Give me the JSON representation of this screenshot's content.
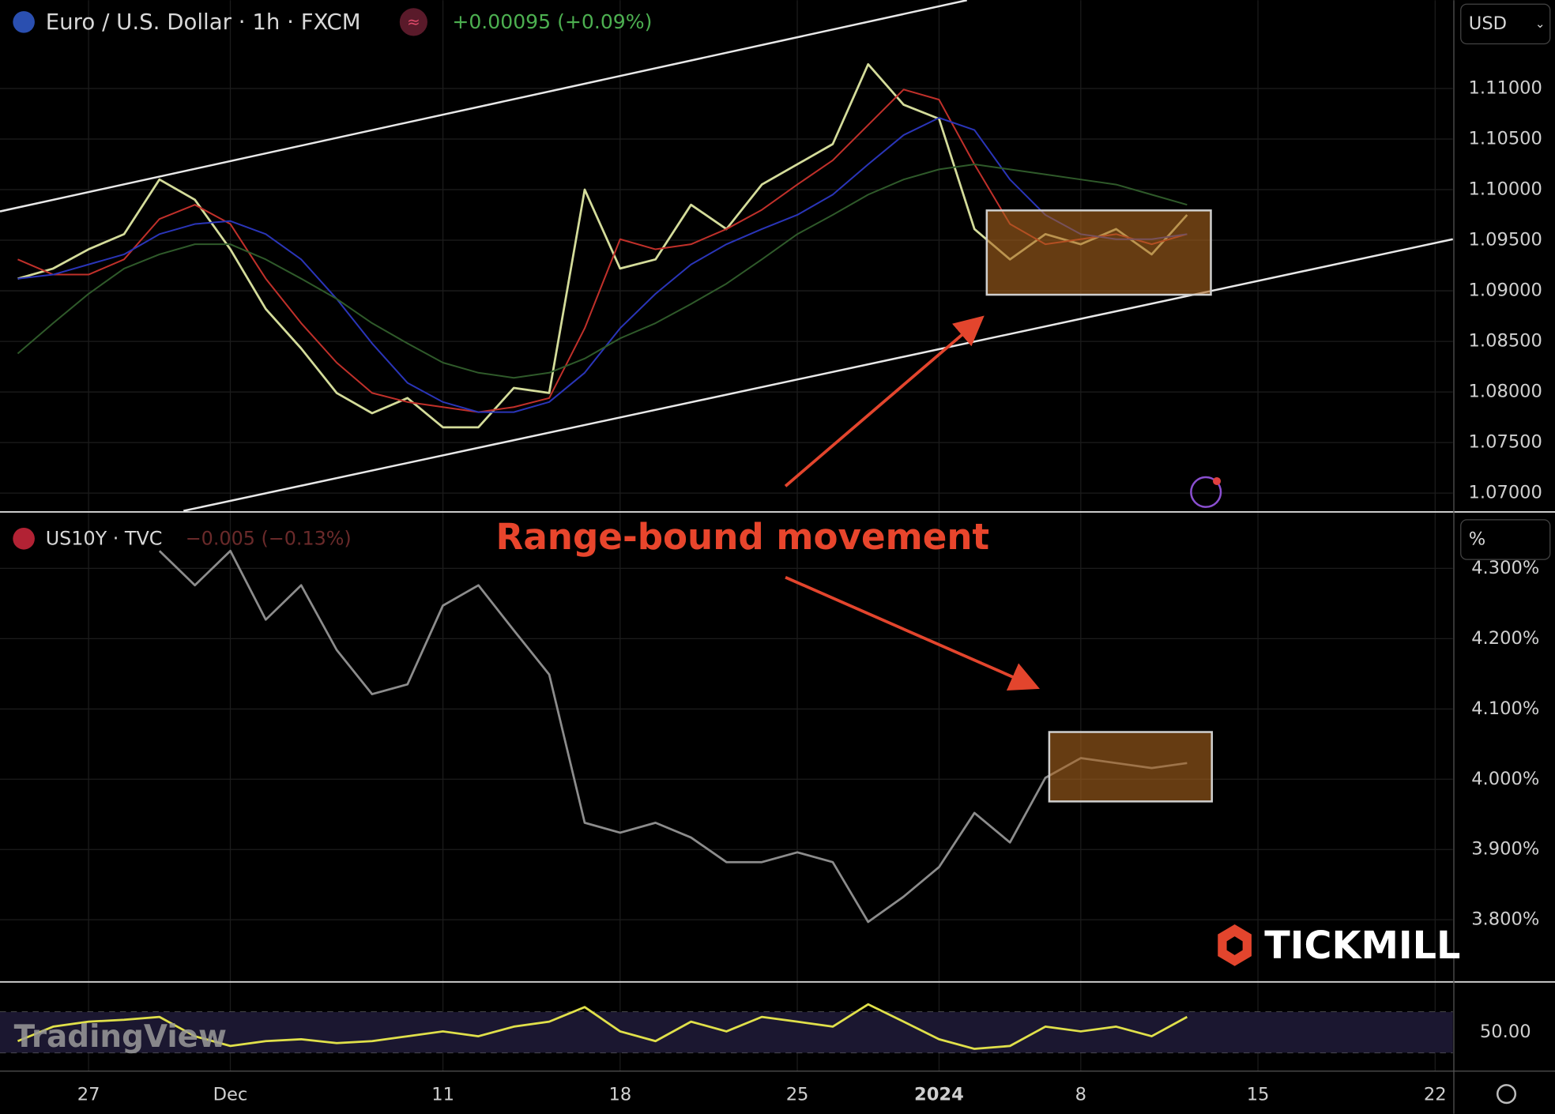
{
  "chart_data": [
    {
      "type": "line",
      "title": "Euro / U.S. Dollar · 1h · FXCM",
      "subtitle": "+0.00095 (+0.09%)",
      "annotations": [
        "Range-bound movement"
      ],
      "series": [
        {
          "color": "#d4dc9a",
          "values": [
            1.0912,
            1.0922,
            1.0941,
            1.0956,
            1.101,
            1.099,
            1.0941,
            1.0882,
            1.0843,
            1.0799,
            1.0779,
            1.0794,
            1.0765,
            1.0765,
            1.0804,
            1.0799,
            1.1,
            1.0922,
            1.0931,
            1.0985,
            1.0961,
            1.1005,
            1.1025,
            1.1045,
            1.1124,
            1.1084,
            1.107,
            1.0961,
            1.0931,
            1.0956,
            1.0946,
            1.0961,
            1.0936,
            1.0975,
            null,
            null,
            null,
            null,
            null,
            null,
            null
          ]
        },
        {
          "color": "#c0302a",
          "values": [
            1.0931,
            1.0916,
            1.0916,
            1.0931,
            1.0971,
            1.0985,
            1.0966,
            1.0912,
            1.0868,
            1.0829,
            1.0799,
            1.079,
            1.0785,
            1.078,
            1.0785,
            1.0794,
            1.0863,
            1.0951,
            1.0941,
            1.0946,
            1.0961,
            1.098,
            1.1005,
            1.1029,
            1.1064,
            1.1099,
            1.1089,
            1.1025,
            1.0966,
            1.0946,
            1.0951,
            1.0956,
            1.0946,
            1.0956,
            null,
            null,
            null,
            null,
            null,
            null,
            null
          ]
        },
        {
          "color": "#2a35b8",
          "values": [
            1.0912,
            1.0916,
            1.0926,
            1.0936,
            1.0956,
            1.0966,
            1.0969,
            1.0956,
            1.0931,
            1.0892,
            1.0848,
            1.0809,
            1.079,
            1.078,
            1.078,
            1.079,
            1.0819,
            1.0863,
            1.0897,
            1.0926,
            1.0946,
            1.0961,
            1.0975,
            1.0995,
            1.1025,
            1.1054,
            1.1071,
            1.1059,
            1.101,
            1.0975,
            1.0956,
            1.0951,
            1.0951,
            1.0956,
            null,
            null,
            null,
            null,
            null,
            null,
            null
          ]
        },
        {
          "color": "#2f5a2a",
          "values": [
            1.0838,
            1.0868,
            1.0897,
            1.0922,
            1.0936,
            1.0946,
            1.0946,
            1.0931,
            1.0912,
            1.0892,
            1.0868,
            1.0848,
            1.0829,
            1.0819,
            1.0814,
            1.0819,
            1.0833,
            1.0853,
            1.0868,
            1.0887,
            1.0907,
            1.0931,
            1.0956,
            1.0975,
            1.0995,
            1.101,
            1.102,
            1.1025,
            1.102,
            1.1015,
            1.101,
            1.1005,
            1.0995,
            1.0985,
            null,
            null,
            null,
            null,
            null,
            null,
            null
          ]
        }
      ],
      "ylim": [
        1.06824,
        1.11873
      ],
      "yticks": [
        {
          "value": 1.07,
          "label": "1.07000"
        },
        {
          "value": 1.075,
          "label": "1.07500"
        },
        {
          "value": 1.08,
          "label": "1.08000"
        },
        {
          "value": 1.085,
          "label": "1.08500"
        },
        {
          "value": 1.09,
          "label": "1.09000"
        },
        {
          "value": 1.095,
          "label": "1.09500"
        },
        {
          "value": 1.1,
          "label": "1.10000"
        },
        {
          "value": 1.105,
          "label": "1.10500"
        },
        {
          "value": 1.11,
          "label": "1.11000"
        }
      ],
      "unit": "USD",
      "grid": true
    },
    {
      "type": "line",
      "title": "US10Y · TVC",
      "subtitle": "−0.005 (−0.13%)",
      "series": [
        {
          "color": "#8c8c8c",
          "values": [
            null,
            null,
            null,
            null,
            4.325,
            4.276,
            4.325,
            4.227,
            4.276,
            4.184,
            4.121,
            4.135,
            4.247,
            4.276,
            4.212,
            4.149,
            3.938,
            3.924,
            3.938,
            3.917,
            3.882,
            3.882,
            3.896,
            3.882,
            3.797,
            3.833,
            3.875,
            3.952,
            3.91,
            4.002,
            4.03,
            4.023,
            4.016,
            4.023,
            null,
            null,
            null,
            null,
            null,
            null,
            null
          ]
        }
      ],
      "ylim": [
        3.713,
        4.379
      ],
      "yticks": [
        {
          "value": 3.8,
          "label": "3.800%"
        },
        {
          "value": 3.9,
          "label": "3.900%"
        },
        {
          "value": 4.0,
          "label": "4.000%"
        },
        {
          "value": 4.1,
          "label": "4.100%"
        },
        {
          "value": 4.2,
          "label": "4.200%"
        },
        {
          "value": 4.3,
          "label": "4.300%"
        }
      ],
      "unit": "%",
      "grid": true
    },
    {
      "type": "line",
      "series": [
        {
          "color": "#e0e04a",
          "values": [
            41.4,
            55.7,
            60.5,
            62.4,
            65.2,
            46.2,
            36.7,
            41.4,
            43.3,
            39.5,
            41.4,
            46.2,
            51,
            46.2,
            55.7,
            60.5,
            74.8,
            51,
            41.4,
            60.5,
            51,
            65.2,
            60.5,
            55.7,
            77.6,
            60.5,
            43.3,
            33.8,
            36.7,
            55.7,
            51,
            55.7,
            46.2,
            65.2,
            null,
            null,
            null,
            null,
            null,
            null,
            null
          ]
        }
      ],
      "levels": [
        30,
        70
      ],
      "ylim": [
        12.9,
        98.6
      ],
      "yticks": [
        {
          "value": 50,
          "label": "50.00"
        }
      ],
      "categories": [
        null,
        null,
        "27",
        null,
        null,
        null,
        "Dec",
        null,
        null,
        null,
        null,
        null,
        "11",
        null,
        null,
        null,
        null,
        "18",
        null,
        null,
        null,
        null,
        "25",
        null,
        null,
        null,
        "2024",
        null,
        null,
        null,
        "8",
        null,
        null,
        null,
        null,
        "15",
        null,
        null,
        null,
        null,
        "22"
      ],
      "grid": true
    }
  ],
  "watermarks": {
    "broker": "TICKMILL",
    "platform": "TradingView"
  }
}
